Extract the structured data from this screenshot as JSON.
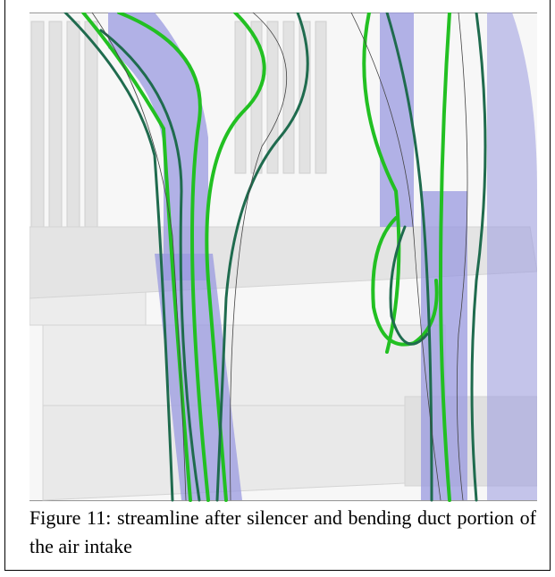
{
  "figure": {
    "caption": "Figure 11: streamline after silencer and bending duct portion of the air intake"
  }
}
